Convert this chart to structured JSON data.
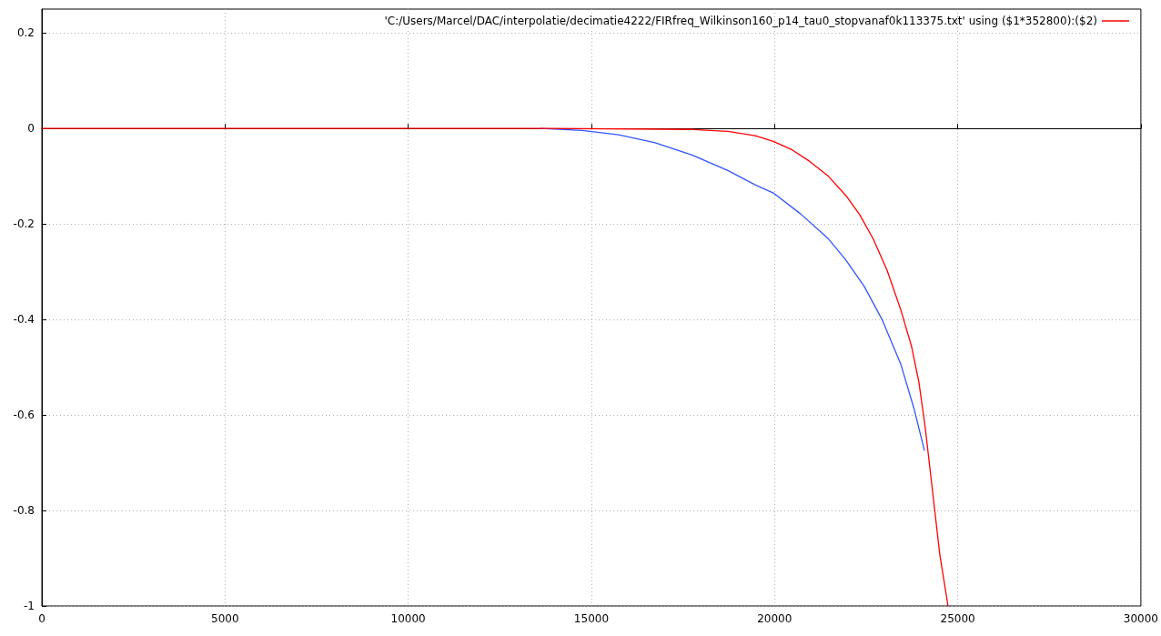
{
  "chart_data": {
    "type": "line",
    "xlim": [
      0,
      30000
    ],
    "xticks": [
      0,
      5000,
      10000,
      15000,
      20000,
      25000,
      30000
    ],
    "ylim": [
      -1,
      0.25
    ],
    "yticks": [
      -1,
      -0.8,
      -0.6,
      -0.4,
      -0.2,
      0,
      0.2
    ],
    "grid": true,
    "legend": "top right",
    "marker": "none",
    "line_style": "solid",
    "series": [
      {
        "name": "'C:/Users/Marcel/DAC/interpolatie/decimatie4222/FIRfreq_Wilkinson160_p14_tau0_stopvanaf0k113375.txt' using ($1*352800):($2)",
        "color": "#ff0000",
        "x": [
          0,
          13758,
          17731,
          18725,
          19470,
          19967,
          20463,
          20960,
          21457,
          21953,
          22326,
          22698,
          23071,
          23443,
          23741,
          23940,
          24114,
          24313,
          24512,
          24735
        ],
        "values": [
          0,
          0,
          -0.002,
          -0.006,
          -0.015,
          -0.027,
          -0.044,
          -0.069,
          -0.099,
          -0.141,
          -0.181,
          -0.232,
          -0.297,
          -0.379,
          -0.457,
          -0.531,
          -0.627,
          -0.76,
          -0.893,
          -1.0
        ]
      },
      {
        "color": "#3355ff",
        "x": [
          13609,
          14751,
          15744,
          16738,
          17731,
          18725,
          19470,
          19967,
          20712,
          21457,
          21953,
          22450,
          22946,
          23443,
          23815,
          24089
        ],
        "values": [
          0,
          -0.004,
          -0.013,
          -0.03,
          -0.055,
          -0.088,
          -0.118,
          -0.135,
          -0.179,
          -0.23,
          -0.276,
          -0.331,
          -0.402,
          -0.493,
          -0.589,
          -0.674
        ]
      }
    ]
  }
}
